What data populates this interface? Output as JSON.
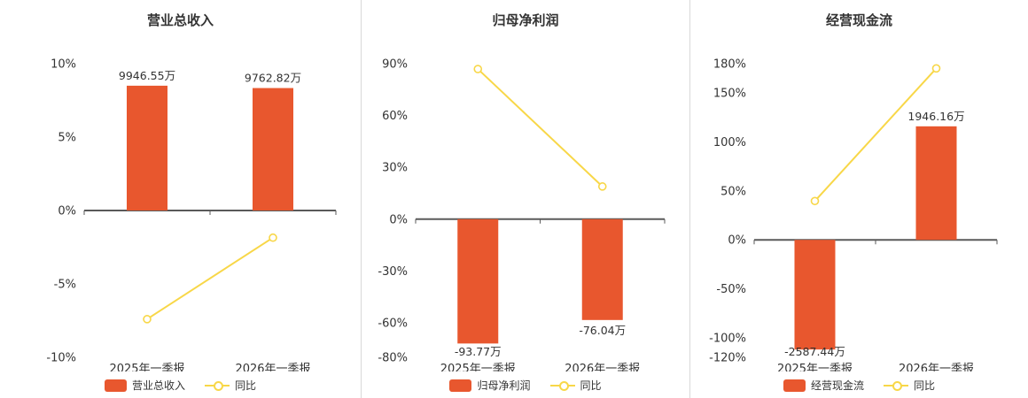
{
  "chart_data": [
    {
      "type": "bar",
      "title": "营业总收入",
      "categories": [
        "2025年一季报",
        "2026年一季报"
      ],
      "bar_series": {
        "name": "营业总收入",
        "color": "#e8572e",
        "data_labels": [
          "9946.55万",
          "9762.82万"
        ],
        "plot_values_axis_pct": [
          8.5,
          8.34
        ]
      },
      "line_series": {
        "name": "同比",
        "color": "#f8d748",
        "values_pct": [
          -7.4,
          -1.85
        ]
      },
      "y_axis": {
        "min": -10,
        "max": 10,
        "tick_values": [
          10,
          5,
          0,
          -5,
          -10
        ],
        "tick_labels": [
          "10%",
          "5%",
          "0%",
          "-5%",
          "-10%"
        ]
      },
      "legend_position": "bottom",
      "grid": "off"
    },
    {
      "type": "bar",
      "title": "归母净利润",
      "categories": [
        "2025年一季报",
        "2026年一季报"
      ],
      "bar_series": {
        "name": "归母净利润",
        "color": "#e8572e",
        "data_labels": [
          "-93.77万",
          "-76.04万"
        ],
        "plot_values_axis_pct": [
          -72,
          -58.4
        ]
      },
      "line_series": {
        "name": "同比",
        "color": "#f8d748",
        "values_pct": [
          86.9,
          18.9
        ]
      },
      "y_axis": {
        "min": -80,
        "max": 90,
        "tick_values": [
          90,
          60,
          30,
          0,
          -30,
          -60,
          -80
        ],
        "tick_labels": [
          "90%",
          "60%",
          "30%",
          "0%",
          "-30%",
          "-60%",
          "-80%"
        ]
      },
      "legend_position": "bottom",
      "grid": "off"
    },
    {
      "type": "bar",
      "title": "经营现金流",
      "categories": [
        "2025年一季报",
        "2026年一季报"
      ],
      "bar_series": {
        "name": "经营现金流",
        "color": "#e8572e",
        "data_labels": [
          "-2587.44万",
          "1946.16万"
        ],
        "plot_values_axis_pct": [
          -112,
          116
        ]
      },
      "line_series": {
        "name": "同比",
        "color": "#f8d748",
        "values_pct": [
          39.7,
          175.2
        ]
      },
      "y_axis": {
        "min": -120,
        "max": 180,
        "tick_values": [
          180,
          150,
          100,
          50,
          0,
          -50,
          -100,
          -120
        ],
        "tick_labels": [
          "180%",
          "150%",
          "100%",
          "50%",
          "0%",
          "-50%",
          "-100%",
          "-120%"
        ]
      },
      "legend_position": "bottom",
      "grid": "off"
    }
  ],
  "colors": {
    "bar": "#e8572e",
    "line": "#f8d748",
    "axis_line": "#5a5a5a",
    "text": "#333333",
    "separator": "#d9d9d9"
  }
}
